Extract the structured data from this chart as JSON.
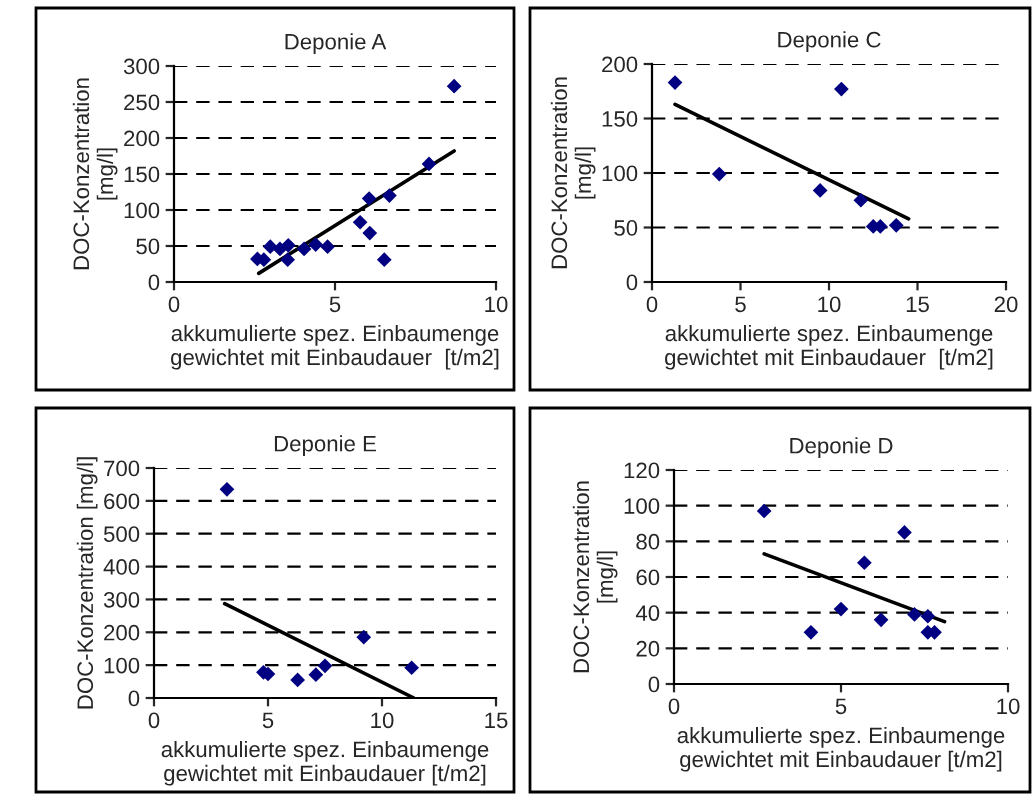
{
  "chart_data": [
    {
      "type": "scatter",
      "title": "Deponie A",
      "xlabel": "akkumulierte spez. Einbaumenge\ngewichtet mit Einbaudauer  [t/m2]",
      "ylabel": "DOC-Konzentration\n[mg/l]",
      "xlim": [
        0,
        10
      ],
      "xticks": [
        0,
        5,
        10
      ],
      "ylim": [
        0,
        300
      ],
      "yticks": [
        0,
        50,
        100,
        150,
        200,
        250,
        300
      ],
      "grid": "y",
      "series": [
        {
          "marker": "diamond",
          "color": "#000080",
          "x": [
            2.59,
            2.79,
            2.99,
            3.29,
            3.55,
            3.53,
            4.04,
            4.4,
            4.77,
            5.78,
            6.06,
            6.08,
            6.53,
            6.69,
            7.92,
            8.7
          ],
          "values": [
            32,
            31,
            49,
            46,
            51,
            31,
            46,
            52,
            49,
            83,
            116,
            68,
            31,
            120,
            164,
            272
          ]
        },
        {
          "type": "line",
          "color": "#000000",
          "line_style": "solid",
          "x": [
            2.63,
            8.7
          ],
          "values": [
            12,
            182
          ]
        }
      ]
    },
    {
      "type": "scatter",
      "title": "Deponie C",
      "xlabel": "akkumulierte spez. Einbaumenge\ngewichtet mit Einbaudauer  [t/m2]",
      "ylabel": "DOC-Konzentration\n[mg/l]",
      "xlim": [
        0,
        20
      ],
      "xticks": [
        0,
        5,
        10,
        15,
        20
      ],
      "ylim": [
        0,
        200
      ],
      "yticks": [
        0,
        50,
        100,
        150,
        200
      ],
      "grid": "y",
      "series": [
        {
          "marker": "diamond",
          "color": "#000080",
          "x": [
            1.3,
            3.8,
            9.5,
            10.7,
            11.8,
            12.5,
            12.9,
            13.8
          ],
          "values": [
            183,
            99,
            84,
            177,
            75,
            51,
            51,
            52
          ]
        },
        {
          "type": "line",
          "color": "#000000",
          "line_style": "solid",
          "x": [
            1.3,
            14.5
          ],
          "values": [
            163,
            58
          ]
        }
      ]
    },
    {
      "type": "scatter",
      "title": "Deponie E",
      "xlabel": "akkumulierte spez. Einbaumenge\ngewichtet mit Einbaudauer [t/m2]",
      "ylabel": "DOC-Konzentration [mg/l]",
      "xlim": [
        0,
        15
      ],
      "xticks": [
        0,
        5,
        10,
        15
      ],
      "ylim": [
        0,
        700
      ],
      "yticks": [
        0,
        100,
        200,
        300,
        400,
        500,
        600,
        700
      ],
      "grid": "y",
      "series": [
        {
          "marker": "diamond",
          "color": "#000080",
          "x": [
            3.2,
            4.8,
            5.0,
            6.3,
            7.1,
            7.5,
            9.2,
            11.3
          ],
          "values": [
            635,
            78,
            73,
            55,
            71,
            98,
            185,
            92
          ]
        },
        {
          "type": "line",
          "color": "#000000",
          "line_style": "solid",
          "x": [
            3.1,
            11.4
          ],
          "values": [
            287,
            0
          ]
        }
      ]
    },
    {
      "type": "scatter",
      "title": "Deponie D",
      "xlabel": "akkumulierte spez. Einbaumenge\ngewichtet mit Einbaudauer [t/m2]",
      "ylabel": "DOC-Konzentration\n[mg/l]",
      "xlim": [
        0,
        10
      ],
      "xticks": [
        0,
        5,
        10
      ],
      "ylim": [
        0,
        120
      ],
      "yticks": [
        0,
        20,
        40,
        60,
        80,
        100,
        120
      ],
      "grid": "y",
      "series": [
        {
          "marker": "diamond",
          "color": "#000080",
          "x": [
            2.7,
            4.1,
            5.0,
            5.7,
            6.2,
            6.9,
            7.2,
            7.6,
            7.6,
            7.8
          ],
          "values": [
            97,
            29,
            42,
            68,
            36,
            85,
            39,
            38,
            29,
            29
          ]
        },
        {
          "type": "line",
          "color": "#000000",
          "line_style": "solid",
          "x": [
            2.7,
            8.1
          ],
          "values": [
            73,
            35
          ]
        }
      ]
    }
  ]
}
